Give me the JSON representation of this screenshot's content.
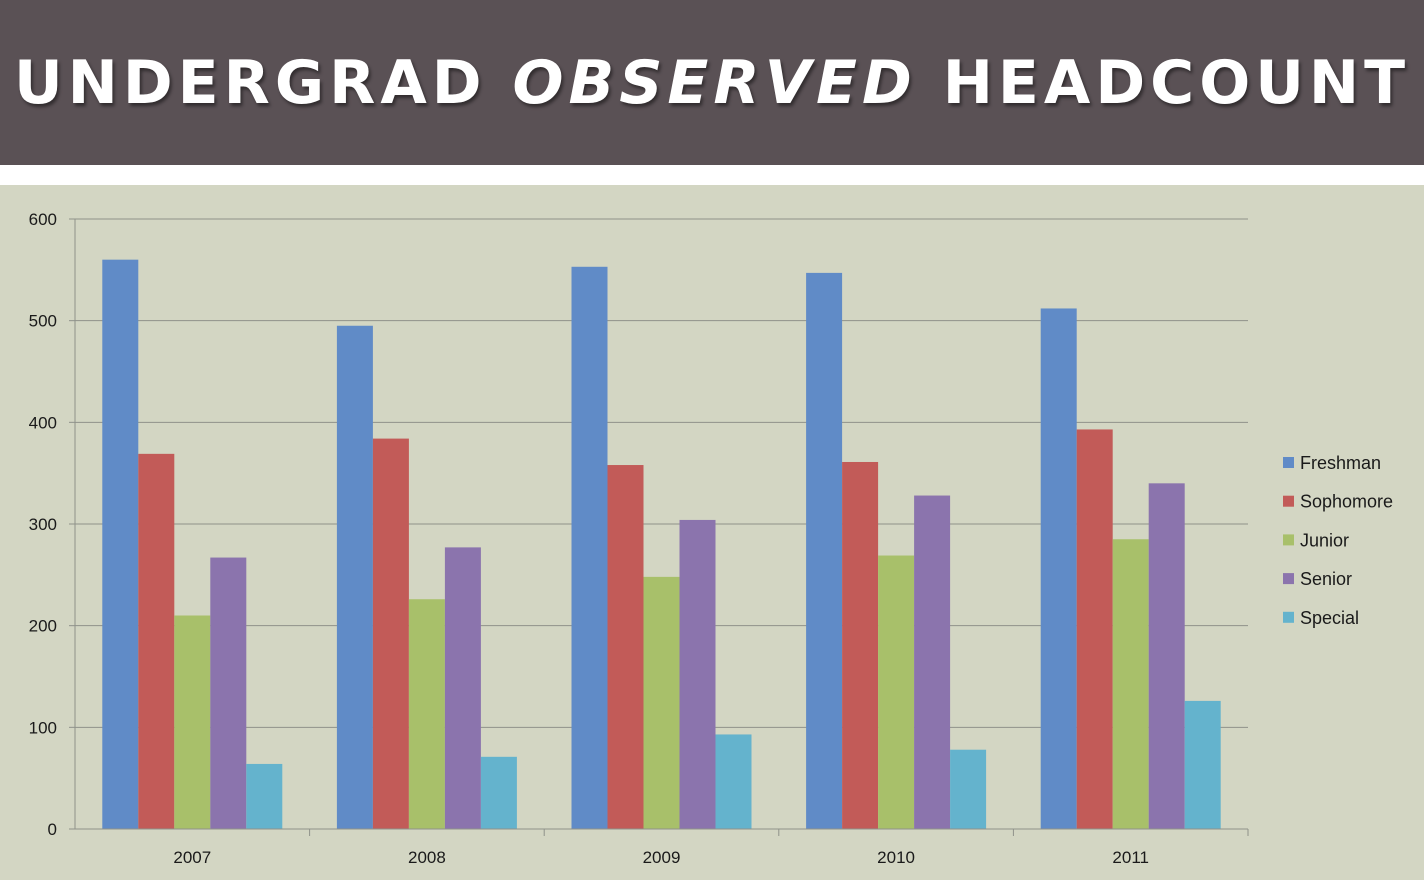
{
  "title": {
    "part1": "UNDERGRAD",
    "part2": "OBSERVED",
    "part3": "HEADCOUNT"
  },
  "colors": {
    "title_bg": "#5a5155",
    "chart_bg": "#d3d6c3"
  },
  "chart_data": {
    "type": "bar",
    "categories": [
      "2007",
      "2008",
      "2009",
      "2010",
      "2011"
    ],
    "series": [
      {
        "name": "Freshman",
        "color": "#608bc7",
        "values": [
          560,
          495,
          553,
          547,
          512
        ]
      },
      {
        "name": "Sophomore",
        "color": "#c25b58",
        "values": [
          369,
          384,
          358,
          361,
          393
        ]
      },
      {
        "name": "Junior",
        "color": "#a8c06a",
        "values": [
          210,
          226,
          248,
          269,
          285
        ]
      },
      {
        "name": "Senior",
        "color": "#8b74ad",
        "values": [
          267,
          277,
          304,
          328,
          340
        ]
      },
      {
        "name": "Special",
        "color": "#64b3cd",
        "values": [
          64,
          71,
          93,
          78,
          126
        ]
      }
    ],
    "ylim": [
      0,
      600
    ],
    "yticks": [
      "0",
      "100",
      "200",
      "300",
      "400",
      "500",
      "600"
    ],
    "grid": true,
    "legend": "right"
  }
}
